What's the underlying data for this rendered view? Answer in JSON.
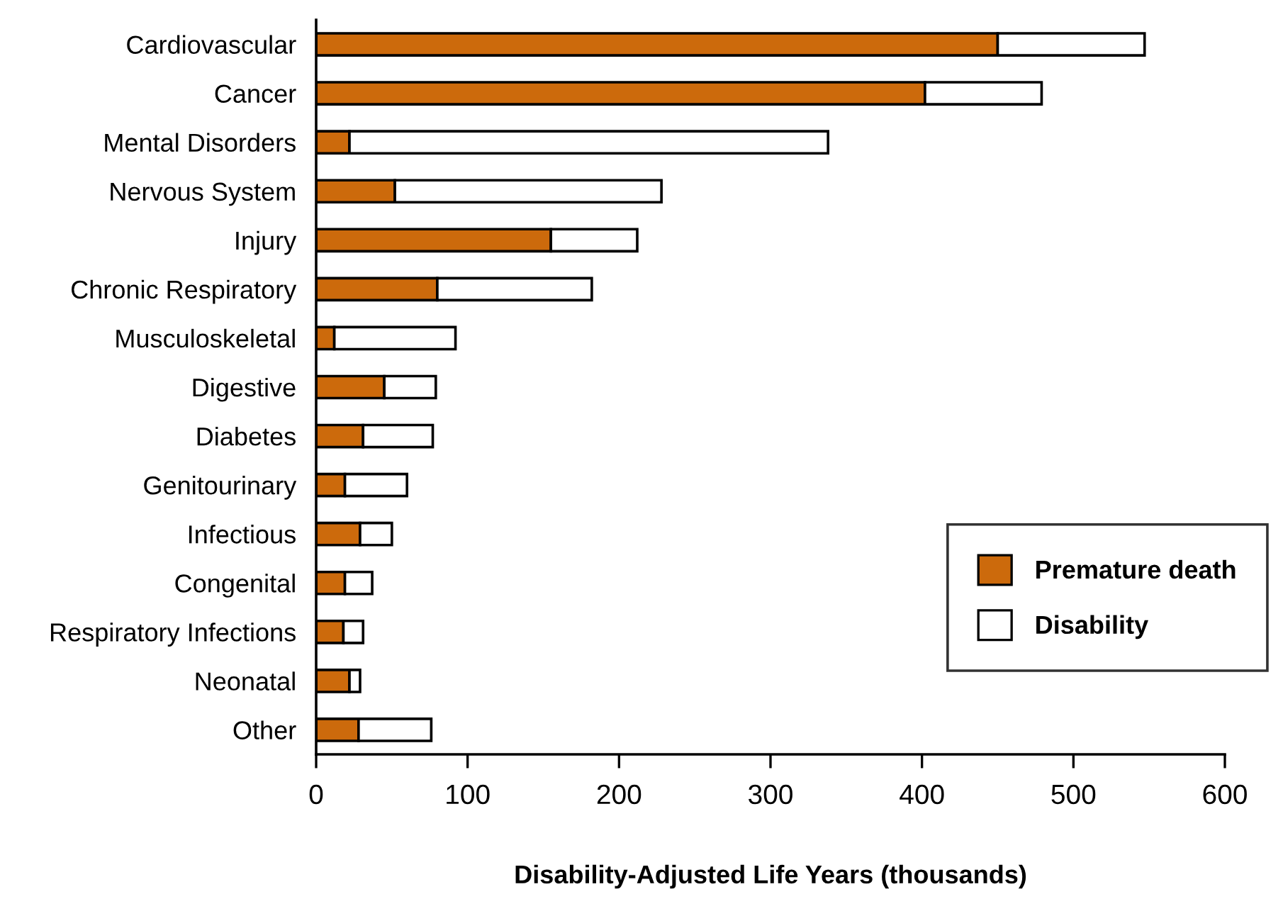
{
  "chart_data": {
    "type": "bar",
    "orientation": "horizontal",
    "stacked": true,
    "xlabel": "Disability-Adjusted Life Years (thousands)",
    "categories": [
      "Cardiovascular",
      "Cancer",
      "Mental Disorders",
      "Nervous System",
      "Injury",
      "Chronic Respiratory",
      "Musculoskeletal",
      "Digestive",
      "Diabetes",
      "Genitourinary",
      "Infectious",
      "Congenital",
      "Respiratory Infections",
      "Neonatal",
      "Other"
    ],
    "series": [
      {
        "name": "Premature death",
        "color": "#cc6a0c",
        "values": [
          450,
          402,
          22,
          52,
          155,
          80,
          12,
          45,
          31,
          19,
          29,
          19,
          18,
          22,
          28
        ]
      },
      {
        "name": "Disability",
        "color": "#ffffff",
        "values": [
          97,
          77,
          316,
          176,
          57,
          102,
          80,
          34,
          46,
          41,
          21,
          18,
          13,
          7,
          48
        ]
      }
    ],
    "xlim": [
      0,
      600
    ],
    "xticks": [
      0,
      100,
      200,
      300,
      400,
      500,
      600
    ],
    "grid": false,
    "legend": "bottom right"
  }
}
